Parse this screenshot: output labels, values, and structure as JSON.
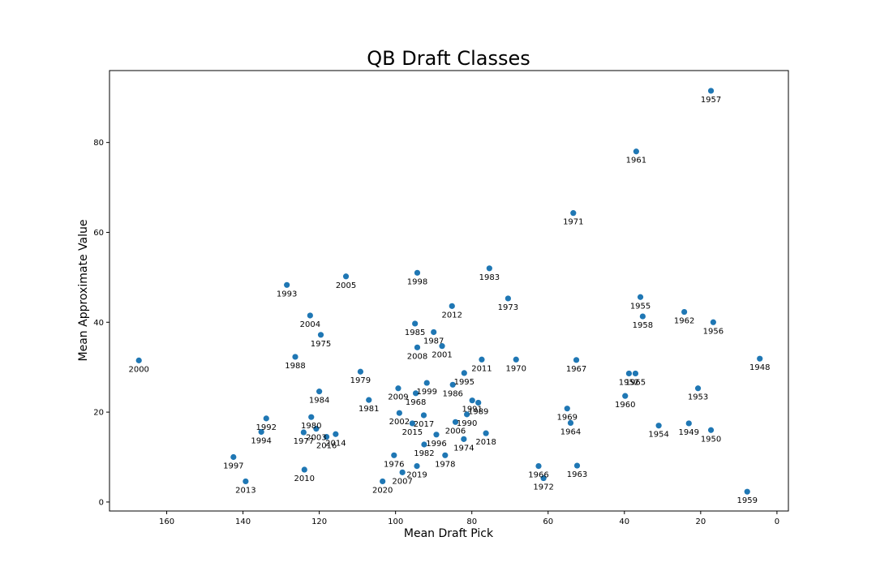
{
  "chart_data": {
    "type": "scatter",
    "title": "QB Draft Classes",
    "xlabel": "Mean Draft Pick",
    "ylabel": "Mean Approximate Value",
    "x_inverted": true,
    "xlim": [
      175,
      -3
    ],
    "ylim": [
      -2,
      96
    ],
    "xticks": [
      160,
      140,
      120,
      100,
      80,
      60,
      40,
      20,
      0
    ],
    "yticks": [
      0,
      20,
      40,
      60,
      80
    ],
    "grid": false,
    "legend": "none",
    "point_color": "#1f77b4",
    "points": [
      {
        "label": "1957",
        "x": 17.3,
        "y": 91.5
      },
      {
        "label": "1961",
        "x": 36.9,
        "y": 78.0
      },
      {
        "label": "1971",
        "x": 53.4,
        "y": 64.3
      },
      {
        "label": "1983",
        "x": 75.4,
        "y": 52.0
      },
      {
        "label": "1998",
        "x": 94.3,
        "y": 51.0
      },
      {
        "label": "2005",
        "x": 113.0,
        "y": 50.2
      },
      {
        "label": "1993",
        "x": 128.5,
        "y": 48.3
      },
      {
        "label": "1973",
        "x": 70.5,
        "y": 45.3
      },
      {
        "label": "1955",
        "x": 35.8,
        "y": 45.6
      },
      {
        "label": "2012",
        "x": 85.2,
        "y": 43.6
      },
      {
        "label": "1962",
        "x": 24.3,
        "y": 42.3
      },
      {
        "label": "2004",
        "x": 122.4,
        "y": 41.5
      },
      {
        "label": "1958",
        "x": 35.2,
        "y": 41.3
      },
      {
        "label": "1956",
        "x": 16.7,
        "y": 40.0
      },
      {
        "label": "1985",
        "x": 94.9,
        "y": 39.7
      },
      {
        "label": "1987",
        "x": 90.0,
        "y": 37.8
      },
      {
        "label": "1975",
        "x": 119.6,
        "y": 37.2
      },
      {
        "label": "2001",
        "x": 87.8,
        "y": 34.7
      },
      {
        "label": "2008",
        "x": 94.3,
        "y": 34.4
      },
      {
        "label": "1988",
        "x": 126.3,
        "y": 32.3
      },
      {
        "label": "1948",
        "x": 4.5,
        "y": 31.9
      },
      {
        "label": "2011",
        "x": 77.4,
        "y": 31.7
      },
      {
        "label": "1970",
        "x": 68.4,
        "y": 31.7
      },
      {
        "label": "1967",
        "x": 52.6,
        "y": 31.6
      },
      {
        "label": "2000",
        "x": 167.3,
        "y": 31.5
      },
      {
        "label": "1979",
        "x": 109.2,
        "y": 29.0
      },
      {
        "label": "1995",
        "x": 82.0,
        "y": 28.7
      },
      {
        "label": "1952",
        "x": 38.8,
        "y": 28.6
      },
      {
        "label": "1965",
        "x": 37.1,
        "y": 28.6
      },
      {
        "label": "1999",
        "x": 91.8,
        "y": 26.5
      },
      {
        "label": "1986",
        "x": 85.0,
        "y": 26.1
      },
      {
        "label": "2009",
        "x": 99.3,
        "y": 25.3
      },
      {
        "label": "1953",
        "x": 20.7,
        "y": 25.3
      },
      {
        "label": "1984",
        "x": 120.0,
        "y": 24.6
      },
      {
        "label": "1968",
        "x": 94.7,
        "y": 24.2
      },
      {
        "label": "1960",
        "x": 39.8,
        "y": 23.6
      },
      {
        "label": "1981",
        "x": 107.0,
        "y": 22.7
      },
      {
        "label": "1991",
        "x": 79.9,
        "y": 22.6
      },
      {
        "label": "1989",
        "x": 78.3,
        "y": 22.1
      },
      {
        "label": "1969",
        "x": 55.0,
        "y": 20.8
      },
      {
        "label": "2002",
        "x": 99.0,
        "y": 19.8
      },
      {
        "label": "1990",
        "x": 81.3,
        "y": 19.5
      },
      {
        "label": "2017",
        "x": 92.6,
        "y": 19.3
      },
      {
        "label": "1980",
        "x": 122.1,
        "y": 18.9
      },
      {
        "label": "1992",
        "x": 133.9,
        "y": 18.6
      },
      {
        "label": "2006",
        "x": 84.3,
        "y": 17.8
      },
      {
        "label": "2015",
        "x": 95.6,
        "y": 17.5
      },
      {
        "label": "1964",
        "x": 54.1,
        "y": 17.6
      },
      {
        "label": "1949",
        "x": 23.1,
        "y": 17.5
      },
      {
        "label": "1954",
        "x": 31.0,
        "y": 17.0
      },
      {
        "label": "2003",
        "x": 120.8,
        "y": 16.3
      },
      {
        "label": "1950",
        "x": 17.3,
        "y": 16.0
      },
      {
        "label": "1994",
        "x": 135.2,
        "y": 15.6
      },
      {
        "label": "1977",
        "x": 124.1,
        "y": 15.5
      },
      {
        "label": "2018",
        "x": 76.3,
        "y": 15.3
      },
      {
        "label": "2014",
        "x": 115.7,
        "y": 15.1
      },
      {
        "label": "1996",
        "x": 89.3,
        "y": 15.0
      },
      {
        "label": "2016",
        "x": 118.1,
        "y": 14.5
      },
      {
        "label": "1974",
        "x": 82.1,
        "y": 14.0
      },
      {
        "label": "1982",
        "x": 92.5,
        "y": 12.8
      },
      {
        "label": "1976",
        "x": 100.4,
        "y": 10.4
      },
      {
        "label": "1978",
        "x": 87.0,
        "y": 10.4
      },
      {
        "label": "1997",
        "x": 142.5,
        "y": 10.0
      },
      {
        "label": "1963",
        "x": 52.4,
        "y": 8.1
      },
      {
        "label": "1966",
        "x": 62.5,
        "y": 8.0
      },
      {
        "label": "2019",
        "x": 94.4,
        "y": 8.0
      },
      {
        "label": "2010",
        "x": 123.9,
        "y": 7.2
      },
      {
        "label": "2007",
        "x": 98.2,
        "y": 6.6
      },
      {
        "label": "1972",
        "x": 61.2,
        "y": 5.3
      },
      {
        "label": "2013",
        "x": 139.3,
        "y": 4.6
      },
      {
        "label": "2020",
        "x": 103.4,
        "y": 4.6
      },
      {
        "label": "1959",
        "x": 7.8,
        "y": 2.3
      }
    ]
  }
}
